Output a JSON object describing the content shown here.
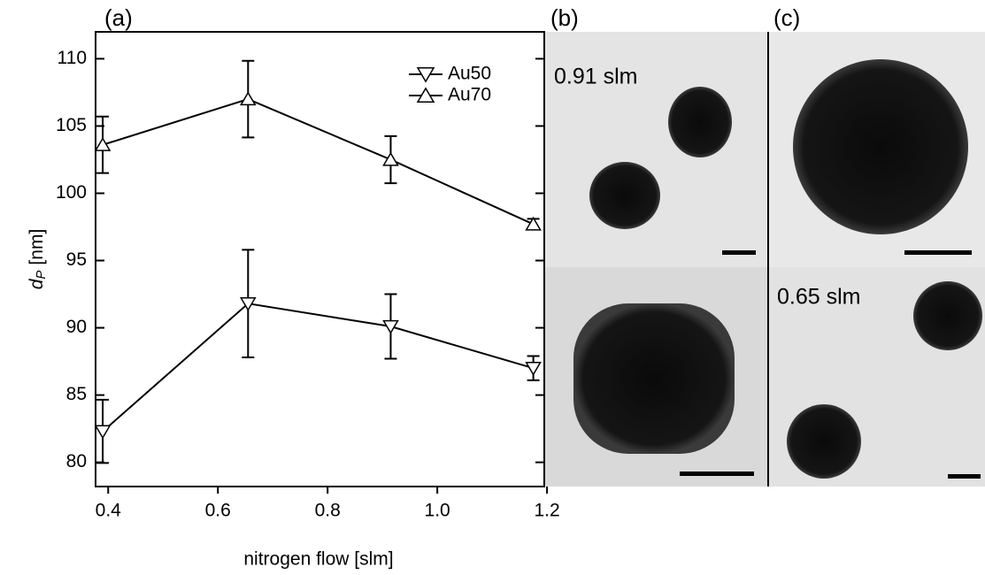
{
  "chart_data": {
    "type": "line",
    "panel_labels": [
      "(a)",
      "(b)",
      "(c)"
    ],
    "xlabel": "nitrogen flow [slm]",
    "ylabel": {
      "symbol": "d",
      "subscript": "P",
      "unit": "[nm]"
    },
    "x": [
      0.39,
      0.655,
      0.915,
      1.175
    ],
    "series": [
      {
        "name": "Au50",
        "color": "#000000",
        "marker": "triangle-down",
        "values": [
          82.3,
          91.8,
          90.1,
          87.0
        ],
        "errors": [
          2.35,
          4.0,
          2.4,
          0.9
        ]
      },
      {
        "name": "Au70",
        "color": "#000000",
        "marker": "triangle-up",
        "values": [
          103.6,
          107.0,
          102.5,
          97.7
        ],
        "errors": [
          2.1,
          2.85,
          1.75,
          0.4
        ]
      }
    ],
    "xlim": [
      0.377,
      1.195
    ],
    "ylim": [
      78.2,
      112.0
    ],
    "xticks": [
      0.4,
      0.6,
      0.8,
      {
        "value": 1.0,
        "label": "1.0"
      },
      {
        "value": 1.2,
        "label": "1.2"
      }
    ],
    "yticks": [
      80,
      85,
      90,
      95,
      100,
      105,
      110
    ],
    "legend": "upper-right",
    "images": {
      "top_left_label": "0.91 slm",
      "bottom_right_label": "0.65 slm"
    }
  }
}
